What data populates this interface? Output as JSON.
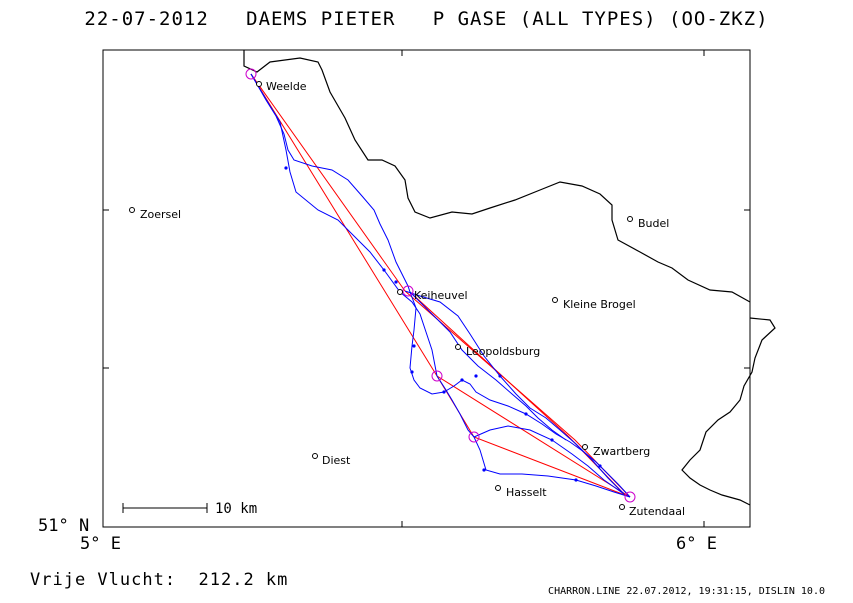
{
  "header": {
    "title": "22-07-2012   DAEMS PIETER   P GASE (ALL TYPES) (OO-ZKZ)"
  },
  "axes": {
    "x_left_label": "5° E",
    "x_right_label": "6° E",
    "y_bottom_label": "51° N"
  },
  "scale_bar": {
    "label": "10 km"
  },
  "cities": [
    {
      "name": "Weelde"
    },
    {
      "name": "Zoersel"
    },
    {
      "name": "Budel"
    },
    {
      "name": "Kleine Brogel"
    },
    {
      "name": "Keiheuvel"
    },
    {
      "name": "Leopoldsburg"
    },
    {
      "name": "Zwartberg"
    },
    {
      "name": "Diest"
    },
    {
      "name": "Hasselt"
    },
    {
      "name": "Zutendaal"
    }
  ],
  "footer": {
    "distance": "Vrije Vlucht:  212.2 km",
    "credit": "CHARRON.LINE 22.07.2012, 19:31:15, DISLIN 10.0"
  },
  "colors": {
    "track": "#0000ff",
    "task_line": "#ff0000",
    "turnpoint": "#cc00cc",
    "border": "#000000"
  }
}
